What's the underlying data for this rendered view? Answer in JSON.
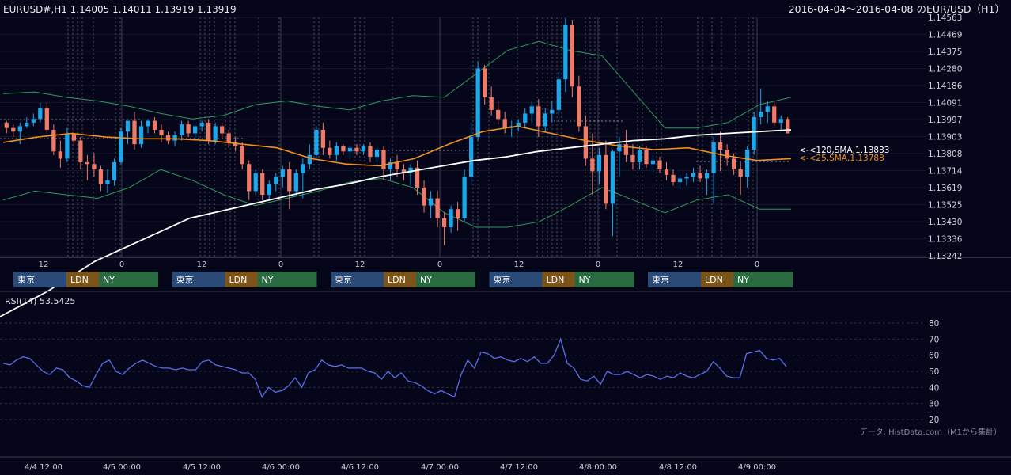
{
  "header": {
    "symbol_ohlc": "EURUSD#,H1 1.14005 1.14011 1.13919 1.13919",
    "range_title": "2016-04-04～2016-04-08 のEUR/USD（H1）"
  },
  "colors": {
    "background": "#05061a",
    "bull": "#1aa7ec",
    "bear": "#f07a68",
    "sma25": "#f0901e",
    "sma120": "#ffffff",
    "bollinger": "#2e9a5a",
    "rsi": "#5a6ee8",
    "tokyo": "#2a4a78",
    "london": "#7a5418",
    "newyork": "#2a6a40"
  },
  "sma_labels": {
    "sma120": "<-<120,SMA,1.13833",
    "sma25": "<-<25,SMA,1.13788"
  },
  "sessions": {
    "tokyo": "東京",
    "london": "LDN",
    "newyork": "NY",
    "days": 5
  },
  "rsi_label": "RSI(14) 53.5425",
  "source_note": "データ: HistData.com（M1から集計）",
  "chart_data": [
    {
      "type": "candlestick",
      "price_axis": [
        "1.14563",
        "1.14469",
        "1.14375",
        "1.14280",
        "1.14186",
        "1.14091",
        "1.13997",
        "1.13903",
        "1.13808",
        "1.13714",
        "1.13619",
        "1.13525",
        "1.13430",
        "1.13336",
        "1.13242"
      ],
      "ylim": [
        1.13242,
        1.14563
      ],
      "hour_ticks": [
        "12",
        "0",
        "12",
        "0",
        "12",
        "0",
        "12",
        "0",
        "12",
        "0"
      ],
      "date_ticks": [
        "4/4 12:00",
        "4/5 00:00",
        "4/5 12:00",
        "4/6 00:00",
        "4/6 12:00",
        "4/7 00:00",
        "4/7 12:00",
        "4/8 00:00",
        "4/8 12:00",
        "4/9 00:00"
      ],
      "candles": [
        [
          1.1398,
          1.1399,
          1.1392,
          1.1395
        ],
        [
          1.1395,
          1.1397,
          1.139,
          1.1393
        ],
        [
          1.1393,
          1.1398,
          1.1386,
          1.1396
        ],
        [
          1.1396,
          1.1401,
          1.1395,
          1.1398
        ],
        [
          1.1398,
          1.1403,
          1.1396,
          1.14
        ],
        [
          1.14,
          1.1409,
          1.1398,
          1.1406
        ],
        [
          1.1406,
          1.1409,
          1.1392,
          1.1394
        ],
        [
          1.1394,
          1.1397,
          1.138,
          1.1382
        ],
        [
          1.1382,
          1.1388,
          1.1373,
          1.1378
        ],
        [
          1.1378,
          1.1395,
          1.1376,
          1.1392
        ],
        [
          1.1392,
          1.1394,
          1.1385,
          1.1388
        ],
        [
          1.1388,
          1.139,
          1.1372,
          1.1376
        ],
        [
          1.1376,
          1.138,
          1.1366,
          1.1375
        ],
        [
          1.1375,
          1.1381,
          1.1368,
          1.1372
        ],
        [
          1.1372,
          1.1374,
          1.136,
          1.1364
        ],
        [
          1.1364,
          1.1372,
          1.1359,
          1.1366
        ],
        [
          1.1366,
          1.1378,
          1.1363,
          1.1376
        ],
        [
          1.1376,
          1.1395,
          1.1375,
          1.1393
        ],
        [
          1.1393,
          1.1399,
          1.1386,
          1.1399
        ],
        [
          1.1399,
          1.1404,
          1.1383,
          1.1386
        ],
        [
          1.1386,
          1.1399,
          1.1384,
          1.1396
        ],
        [
          1.1396,
          1.14,
          1.1392,
          1.1399
        ],
        [
          1.1399,
          1.1401,
          1.1392,
          1.1394
        ],
        [
          1.1394,
          1.1397,
          1.1387,
          1.1391
        ],
        [
          1.1391,
          1.1393,
          1.1386,
          1.1388
        ],
        [
          1.1388,
          1.1393,
          1.1385,
          1.1391
        ],
        [
          1.1391,
          1.1399,
          1.1388,
          1.1397
        ],
        [
          1.1397,
          1.1399,
          1.139,
          1.1392
        ],
        [
          1.1392,
          1.1398,
          1.1388,
          1.1396
        ],
        [
          1.1396,
          1.1399,
          1.1393,
          1.1398
        ],
        [
          1.1398,
          1.14,
          1.1386,
          1.1388
        ],
        [
          1.1388,
          1.1398,
          1.1386,
          1.1396
        ],
        [
          1.1396,
          1.1398,
          1.1389,
          1.1392
        ],
        [
          1.1392,
          1.1394,
          1.1384,
          1.1387
        ],
        [
          1.1387,
          1.139,
          1.1382,
          1.1385
        ],
        [
          1.1385,
          1.1387,
          1.1372,
          1.1375
        ],
        [
          1.1375,
          1.1377,
          1.1355,
          1.136
        ],
        [
          1.136,
          1.1372,
          1.1358,
          1.137
        ],
        [
          1.137,
          1.1372,
          1.1355,
          1.1358
        ],
        [
          1.1358,
          1.1366,
          1.1355,
          1.1364
        ],
        [
          1.1364,
          1.137,
          1.136,
          1.1368
        ],
        [
          1.1368,
          1.1374,
          1.1362,
          1.1372
        ],
        [
          1.1372,
          1.1376,
          1.135,
          1.136
        ],
        [
          1.136,
          1.1372,
          1.1357,
          1.137
        ],
        [
          1.137,
          1.1378,
          1.1356,
          1.1375
        ],
        [
          1.1375,
          1.1386,
          1.1372,
          1.138
        ],
        [
          1.138,
          1.1396,
          1.1378,
          1.1394
        ],
        [
          1.1394,
          1.1398,
          1.138,
          1.1384
        ],
        [
          1.1384,
          1.1388,
          1.1378,
          1.138
        ],
        [
          1.138,
          1.1387,
          1.1377,
          1.1385
        ],
        [
          1.1385,
          1.1386,
          1.138,
          1.1382
        ],
        [
          1.1382,
          1.1385,
          1.1378,
          1.1384
        ],
        [
          1.1384,
          1.1386,
          1.138,
          1.1382
        ],
        [
          1.1382,
          1.1386,
          1.138,
          1.1385
        ],
        [
          1.1385,
          1.1387,
          1.1376,
          1.1379
        ],
        [
          1.1379,
          1.1384,
          1.1376,
          1.1383
        ],
        [
          1.1383,
          1.1385,
          1.1366,
          1.1372
        ],
        [
          1.1372,
          1.1378,
          1.1366,
          1.1376
        ],
        [
          1.1376,
          1.138,
          1.1368,
          1.1372
        ],
        [
          1.1372,
          1.1375,
          1.1366,
          1.137
        ],
        [
          1.137,
          1.1375,
          1.1363,
          1.1373
        ],
        [
          1.1373,
          1.1377,
          1.1358,
          1.1362
        ],
        [
          1.1362,
          1.1366,
          1.1348,
          1.1352
        ],
        [
          1.1352,
          1.136,
          1.1345,
          1.1356
        ],
        [
          1.1356,
          1.136,
          1.134,
          1.1345
        ],
        [
          1.1345,
          1.1348,
          1.133,
          1.134
        ],
        [
          1.134,
          1.1352,
          1.1337,
          1.135
        ],
        [
          1.135,
          1.1354,
          1.1338,
          1.1345
        ],
        [
          1.1345,
          1.1372,
          1.1343,
          1.1368
        ],
        [
          1.1368,
          1.1398,
          1.1363,
          1.139
        ],
        [
          1.139,
          1.1432,
          1.1388,
          1.1428
        ],
        [
          1.1428,
          1.143,
          1.1408,
          1.1412
        ],
        [
          1.1412,
          1.1418,
          1.1402,
          1.1405
        ],
        [
          1.1405,
          1.141,
          1.1397,
          1.14
        ],
        [
          1.14,
          1.1404,
          1.1392,
          1.1395
        ],
        [
          1.1395,
          1.1399,
          1.139,
          1.1396
        ],
        [
          1.1396,
          1.14,
          1.1393,
          1.1398
        ],
        [
          1.1398,
          1.1406,
          1.1395,
          1.1403
        ],
        [
          1.1403,
          1.141,
          1.1398,
          1.1407
        ],
        [
          1.1407,
          1.1411,
          1.139,
          1.1396
        ],
        [
          1.1396,
          1.1406,
          1.1393,
          1.1403
        ],
        [
          1.1403,
          1.141,
          1.1398,
          1.1405
        ],
        [
          1.1405,
          1.1426,
          1.1402,
          1.1422
        ],
        [
          1.1422,
          1.1456,
          1.1415,
          1.1452
        ],
        [
          1.1452,
          1.1455,
          1.1412,
          1.1418
        ],
        [
          1.1418,
          1.1424,
          1.1393,
          1.1396
        ],
        [
          1.1396,
          1.1402,
          1.1374,
          1.1378
        ],
        [
          1.1378,
          1.1392,
          1.1358,
          1.1371
        ],
        [
          1.1371,
          1.1384,
          1.1364,
          1.138
        ],
        [
          1.138,
          1.1388,
          1.135,
          1.1353
        ],
        [
          1.1353,
          1.1383,
          1.1335,
          1.1382
        ],
        [
          1.1382,
          1.139,
          1.1368,
          1.1386
        ],
        [
          1.1386,
          1.1394,
          1.1376,
          1.138
        ],
        [
          1.138,
          1.1386,
          1.1372,
          1.1376
        ],
        [
          1.1376,
          1.1385,
          1.1372,
          1.1383
        ],
        [
          1.1383,
          1.1385,
          1.1373,
          1.1375
        ],
        [
          1.1375,
          1.138,
          1.1371,
          1.1377
        ],
        [
          1.1377,
          1.1379,
          1.137,
          1.1372
        ],
        [
          1.1372,
          1.1376,
          1.1366,
          1.1369
        ],
        [
          1.1369,
          1.1372,
          1.1363,
          1.1365
        ],
        [
          1.1365,
          1.1369,
          1.1361,
          1.1367
        ],
        [
          1.1367,
          1.137,
          1.1363,
          1.1368
        ],
        [
          1.1368,
          1.1373,
          1.1365,
          1.137
        ],
        [
          1.137,
          1.1374,
          1.1365,
          1.1367
        ],
        [
          1.1367,
          1.1372,
          1.1358,
          1.137
        ],
        [
          1.137,
          1.139,
          1.1353,
          1.1387
        ],
        [
          1.1387,
          1.1393,
          1.1371,
          1.1383
        ],
        [
          1.1383,
          1.1386,
          1.1374,
          1.1378
        ],
        [
          1.1378,
          1.1381,
          1.1369,
          1.1372
        ],
        [
          1.1372,
          1.1376,
          1.1358,
          1.1368
        ],
        [
          1.1368,
          1.1385,
          1.1362,
          1.1383
        ],
        [
          1.1383,
          1.1404,
          1.138,
          1.1401
        ],
        [
          1.1401,
          1.1417,
          1.1397,
          1.1404
        ],
        [
          1.1404,
          1.141,
          1.1398,
          1.1407
        ],
        [
          1.1407,
          1.141,
          1.1396,
          1.1398
        ],
        [
          1.1398,
          1.1402,
          1.1393,
          1.14
        ],
        [
          1.14,
          1.1401,
          1.1392,
          1.1392
        ]
      ],
      "sma120": [
        1.1345,
        1.1349,
        1.1353,
        1.1357,
        1.1361,
        1.1364,
        1.1368,
        1.1371,
        1.1374,
        1.1377,
        1.1379,
        1.1382,
        1.1384,
        1.1386,
        1.1388,
        1.1389,
        1.1391,
        1.1392,
        1.1393,
        1.1394
      ],
      "sma25": [
        1.1387,
        1.139,
        1.1392,
        1.139,
        1.1389,
        1.1389,
        1.1388,
        1.1386,
        1.1384,
        1.1378,
        1.1375,
        1.1374,
        1.1378,
        1.1386,
        1.1393,
        1.1396,
        1.1392,
        1.1388,
        1.1385,
        1.1383,
        1.1384,
        1.138,
        1.1377,
        1.1378
      ],
      "boll_upper": [
        1.1414,
        1.1415,
        1.1412,
        1.141,
        1.1407,
        1.1403,
        1.14,
        1.1402,
        1.1408,
        1.141,
        1.1407,
        1.1405,
        1.141,
        1.1413,
        1.1412,
        1.1425,
        1.1438,
        1.1443,
        1.1438,
        1.1435,
        1.1415,
        1.1395,
        1.1395,
        1.1398,
        1.1408,
        1.1412
      ],
      "boll_lower": [
        1.1355,
        1.136,
        1.1358,
        1.1356,
        1.1362,
        1.1372,
        1.1366,
        1.1358,
        1.1352,
        1.1356,
        1.136,
        1.1365,
        1.1367,
        1.1362,
        1.1348,
        1.134,
        1.134,
        1.1343,
        1.1352,
        1.1362,
        1.1355,
        1.1348,
        1.1355,
        1.1358,
        1.135,
        1.135
      ]
    },
    {
      "type": "line",
      "name": "RSI(14)",
      "y_ticks": [
        "80",
        "70",
        "60",
        "50",
        "40",
        "30",
        "20"
      ],
      "ylim": [
        20,
        80
      ],
      "values": [
        55,
        54,
        57,
        59,
        58,
        54,
        50,
        48,
        52,
        51,
        46,
        44,
        41,
        40,
        48,
        55,
        57,
        50,
        48,
        52,
        55,
        57,
        55,
        53,
        52,
        52,
        51,
        52,
        51,
        51,
        56,
        57,
        54,
        53,
        52,
        51,
        49,
        49,
        45,
        34,
        40,
        37,
        38,
        41,
        46,
        40,
        49,
        51,
        57,
        54,
        53,
        54,
        52,
        52,
        52,
        50,
        49,
        45,
        50,
        46,
        49,
        44,
        43,
        41,
        38,
        36,
        38,
        36,
        34,
        48,
        57,
        52,
        62,
        61,
        58,
        59,
        57,
        56,
        58,
        56,
        59,
        55,
        55,
        60,
        70,
        55,
        52,
        45,
        44,
        47,
        42,
        50,
        48,
        48,
        50,
        48,
        46,
        48,
        47,
        45,
        47,
        46,
        49,
        47,
        46,
        48,
        50,
        56,
        52,
        47,
        46,
        46,
        61,
        62,
        63,
        58,
        57,
        58,
        53
      ]
    }
  ]
}
